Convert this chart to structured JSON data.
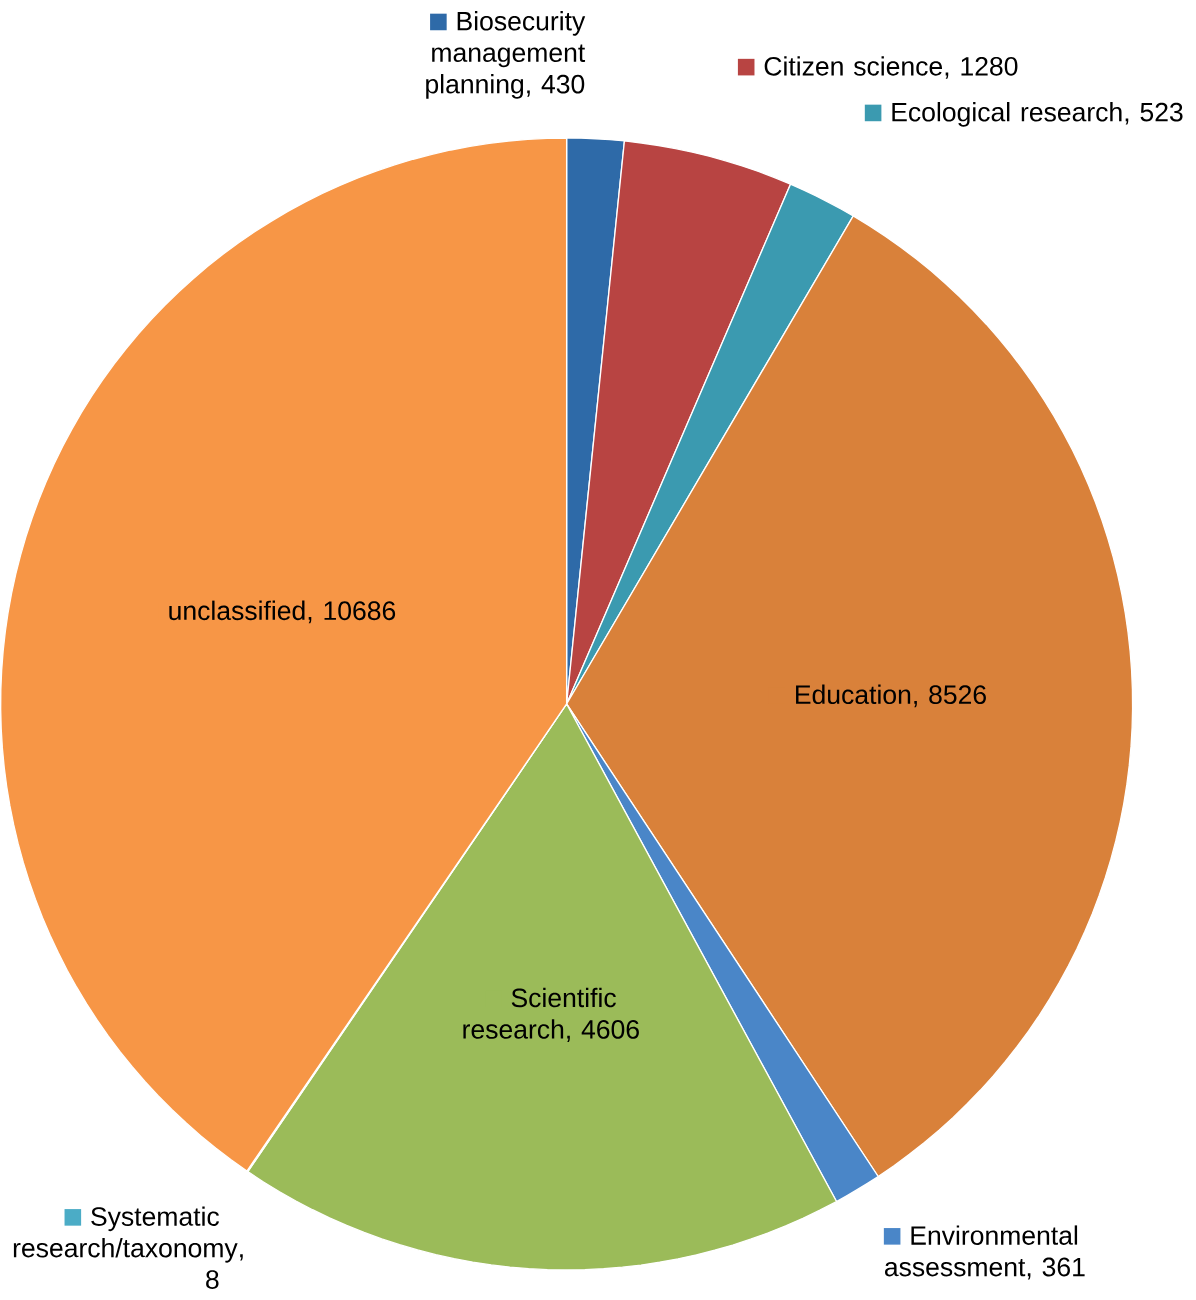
{
  "chart_data": {
    "type": "pie",
    "categories": [
      "Biosecurity management planning",
      "Citizen science",
      "Ecological research",
      "Education",
      "Environmental assessment",
      "Scientific research",
      "Systematic research/taxonomy",
      "unclassified"
    ],
    "values": [
      430,
      1280,
      523,
      8526,
      361,
      4606,
      8,
      10686
    ],
    "colors": [
      "#2e6aa8",
      "#b84442",
      "#3b9ab0",
      "#d9813a",
      "#4a86c8",
      "#9bbb59",
      "#4bacc6",
      "#f79646"
    ],
    "value_labels": [
      ", 430",
      ", 1280",
      ", 523",
      ", 8526",
      ", 361",
      ", 4606",
      ", 8",
      ", 10686"
    ],
    "legend": "right"
  }
}
